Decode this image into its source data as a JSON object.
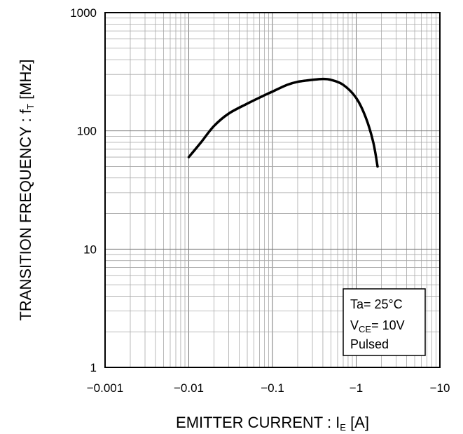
{
  "chart_data": {
    "type": "line",
    "xscale": "log",
    "yscale": "log",
    "xlabel": {
      "main": "EMITTER CURRENT : I",
      "sub": "E",
      "unit": " [A]"
    },
    "ylabel": {
      "main": "TRANSITION FREQUENCY : f",
      "sub": "T",
      "unit": " [MHz]"
    },
    "xlim": [
      -0.001,
      -10
    ],
    "ylim": [
      1,
      1000
    ],
    "x_ticks": [
      "-0.001",
      "-0.01",
      "-0.1",
      "-1",
      "-10"
    ],
    "y_ticks": [
      "1",
      "10",
      "100",
      "1000"
    ],
    "grid": true,
    "legend": {
      "position": "bottom-right",
      "line1": "Ta= 25°C",
      "line2_main": "V",
      "line2_sub": "CE",
      "line2_rest": "= 10V",
      "line3": "Pulsed"
    },
    "series": [
      {
        "color": "#000000",
        "x": [
          -0.01,
          -0.014,
          -0.02,
          -0.03,
          -0.05,
          -0.08,
          -0.1,
          -0.15,
          -0.2,
          -0.3,
          -0.4,
          -0.5,
          -0.7,
          -1.0,
          -1.3,
          -1.6,
          -1.8
        ],
        "y": [
          60,
          80,
          110,
          140,
          170,
          200,
          215,
          245,
          260,
          270,
          275,
          270,
          245,
          190,
          130,
          80,
          50
        ]
      }
    ]
  }
}
